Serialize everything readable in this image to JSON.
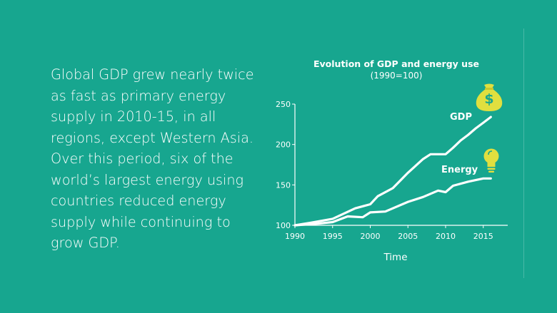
{
  "text": "Global GDP grew nearly twice as fast as primary energy supply in 2010-15, in all regions, except Western Asia. Over this period, six of the world’s largest energy using countries reduced energy supply while continuing to grow GDP.",
  "chart_data": {
    "type": "line",
    "title": "Evolution of GDP and energy use",
    "subtitle": "(1990=100)",
    "xlabel": "Time",
    "ylabel": "",
    "xlim": [
      1990,
      2018
    ],
    "ylim": [
      100,
      250
    ],
    "xticks": [
      1990,
      1995,
      2000,
      2005,
      2010,
      2015
    ],
    "yticks": [
      100,
      150,
      200,
      250
    ],
    "grid": false,
    "series": [
      {
        "name": "GDP",
        "icon": "money-bag-icon",
        "color": "#ffffff",
        "x": [
          1990,
          1992,
          1995,
          1998,
          2000,
          2001,
          2003,
          2005,
          2007,
          2008,
          2009,
          2010,
          2011,
          2012,
          2013,
          2014,
          2015,
          2016
        ],
        "y": [
          100,
          103,
          108,
          121,
          126,
          136,
          146,
          165,
          182,
          188,
          188,
          188,
          196,
          205,
          212,
          220,
          227,
          234
        ]
      },
      {
        "name": "Energy",
        "icon": "lightbulb-icon",
        "color": "#ffffff",
        "x": [
          1990,
          1993,
          1995,
          1997,
          1999,
          2000,
          2002,
          2003,
          2005,
          2007,
          2009,
          2010,
          2011,
          2013,
          2015,
          2016
        ],
        "y": [
          100,
          102,
          104,
          111,
          110,
          116,
          117,
          121,
          129,
          135,
          143,
          141,
          149,
          154,
          158,
          158
        ]
      }
    ]
  }
}
